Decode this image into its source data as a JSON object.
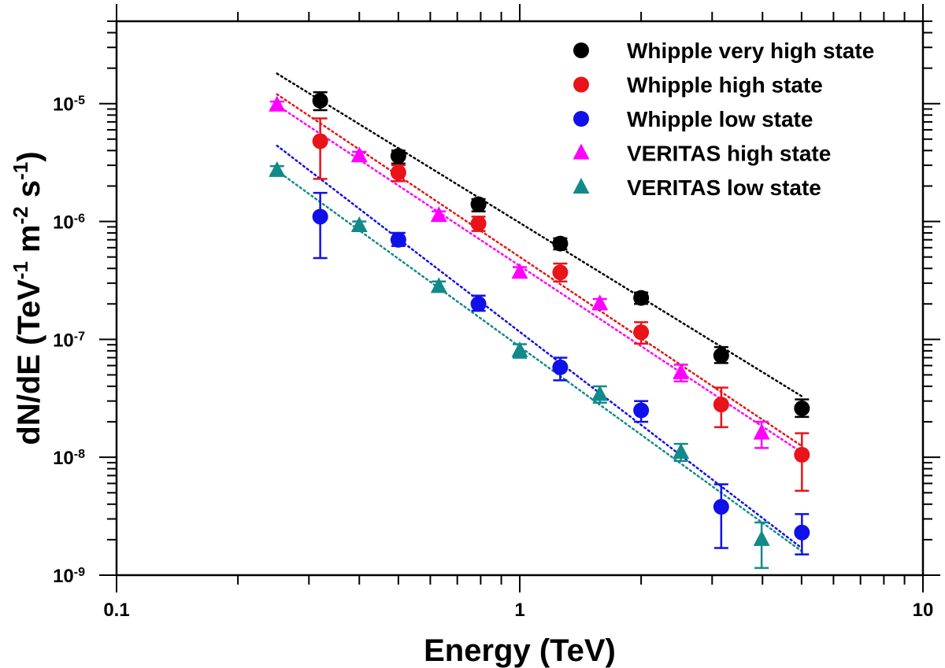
{
  "chart_data": {
    "type": "scatter",
    "title": "",
    "xlabel": "Energy (TeV)",
    "ylabel": {
      "main": "dN/dE (TeV",
      "sup1": "-1",
      "mid": " m",
      "sup2": "-2",
      "mid2": " s",
      "sup3": "-1",
      "end": ")"
    },
    "xscale": "log",
    "yscale": "log",
    "xlim": [
      0.1,
      10
    ],
    "ylim": [
      1e-09,
      5e-05
    ],
    "x_ticks": [
      {
        "value": 0.1,
        "label": "0.1"
      },
      {
        "value": 1,
        "label": "1"
      },
      {
        "value": 10,
        "label": "10"
      }
    ],
    "y_ticks": [
      {
        "value": 1e-09,
        "base": "10",
        "exp": "-9"
      },
      {
        "value": 1e-08,
        "base": "10",
        "exp": "-8"
      },
      {
        "value": 1e-07,
        "base": "10",
        "exp": "-7"
      },
      {
        "value": 1e-06,
        "base": "10",
        "exp": "-6"
      },
      {
        "value": 1e-05,
        "base": "10",
        "exp": "-5"
      }
    ],
    "legend_position": "top-right",
    "series": [
      {
        "name": "Whipple very high state",
        "marker": "circle",
        "color": "#000000",
        "points": [
          {
            "x": 0.32,
            "y": 1.06e-05,
            "ylo": 8.8e-06,
            "yhi": 1.25e-05
          },
          {
            "x": 0.5,
            "y": 3.6e-06,
            "ylo": 3.1e-06,
            "yhi": 4e-06
          },
          {
            "x": 0.79,
            "y": 1.4e-06,
            "ylo": 1.22e-06,
            "yhi": 1.55e-06
          },
          {
            "x": 1.26,
            "y": 6.5e-07,
            "ylo": 5.8e-07,
            "yhi": 7.2e-07
          },
          {
            "x": 2.0,
            "y": 2.25e-07,
            "ylo": 2e-07,
            "yhi": 2.5e-07
          },
          {
            "x": 3.16,
            "y": 7.3e-08,
            "ylo": 6.3e-08,
            "yhi": 8.6e-08
          },
          {
            "x": 5.01,
            "y": 2.6e-08,
            "ylo": 2.2e-08,
            "yhi": 3.1e-08
          }
        ],
        "fit": {
          "x": [
            0.25,
            5.0
          ],
          "y": [
            1.8e-05,
            3.3e-08
          ]
        }
      },
      {
        "name": "Whipple high state",
        "marker": "circle",
        "color": "#e8141a",
        "points": [
          {
            "x": 0.32,
            "y": 4.8e-06,
            "ylo": 2.3e-06,
            "yhi": 7.5e-06
          },
          {
            "x": 0.5,
            "y": 2.6e-06,
            "ylo": 2.2e-06,
            "yhi": 3e-06
          },
          {
            "x": 0.79,
            "y": 9.6e-07,
            "ylo": 8.3e-07,
            "yhi": 1.1e-06
          },
          {
            "x": 1.26,
            "y": 3.7e-07,
            "ylo": 3.1e-07,
            "yhi": 4.4e-07
          },
          {
            "x": 2.0,
            "y": 1.15e-07,
            "ylo": 9.2e-08,
            "yhi": 1.4e-07
          },
          {
            "x": 3.16,
            "y": 2.8e-08,
            "ylo": 1.8e-08,
            "yhi": 3.9e-08
          },
          {
            "x": 5.01,
            "y": 1.05e-08,
            "ylo": 5.2e-09,
            "yhi": 1.6e-08
          }
        ],
        "fit": {
          "x": [
            0.25,
            5.0
          ],
          "y": [
            1.2e-05,
            1.25e-08
          ]
        }
      },
      {
        "name": "Whipple low state",
        "marker": "circle",
        "color": "#1010e8",
        "points": [
          {
            "x": 0.32,
            "y": 1.1e-06,
            "ylo": 4.9e-07,
            "yhi": 1.75e-06
          },
          {
            "x": 0.5,
            "y": 7e-07,
            "ylo": 6.2e-07,
            "yhi": 8e-07
          },
          {
            "x": 0.79,
            "y": 2e-07,
            "ylo": 1.75e-07,
            "yhi": 2.35e-07
          },
          {
            "x": 1.26,
            "y": 5.8e-08,
            "ylo": 4.5e-08,
            "yhi": 7e-08
          },
          {
            "x": 2.0,
            "y": 2.5e-08,
            "ylo": 2e-08,
            "yhi": 3e-08
          },
          {
            "x": 3.16,
            "y": 3.8e-09,
            "ylo": 1.7e-09,
            "yhi": 5.9e-09
          },
          {
            "x": 5.01,
            "y": 2.3e-09,
            "ylo": 1.5e-09,
            "yhi": 3.3e-09
          }
        ],
        "fit": {
          "x": [
            0.25,
            5.0
          ],
          "y": [
            4.4e-06,
            1.7e-09
          ]
        }
      },
      {
        "name": "VERITAS high state",
        "marker": "triangle",
        "color": "#ff00ff",
        "points": [
          {
            "x": 0.25,
            "y": 9.7e-06,
            "ylo": 9e-06,
            "yhi": 1.04e-05
          },
          {
            "x": 0.4,
            "y": 3.6e-06,
            "ylo": 3.3e-06,
            "yhi": 3.9e-06
          },
          {
            "x": 0.63,
            "y": 1.12e-06,
            "ylo": 1.03e-06,
            "yhi": 1.22e-06
          },
          {
            "x": 1.0,
            "y": 3.7e-07,
            "ylo": 3.35e-07,
            "yhi": 4.1e-07
          },
          {
            "x": 1.58,
            "y": 2e-07,
            "ylo": 1.8e-07,
            "yhi": 2.2e-07
          },
          {
            "x": 2.51,
            "y": 5.2e-08,
            "ylo": 4.4e-08,
            "yhi": 6.1e-08
          },
          {
            "x": 3.98,
            "y": 1.6e-08,
            "ylo": 1.2e-08,
            "yhi": 2e-08
          }
        ],
        "fit": {
          "x": [
            0.25,
            5.0
          ],
          "y": [
            9.7e-06,
            1.1e-08
          ]
        }
      },
      {
        "name": "VERITAS low state",
        "marker": "triangle",
        "color": "#138a8a",
        "points": [
          {
            "x": 0.25,
            "y": 2.7e-06,
            "ylo": 2.5e-06,
            "yhi": 2.95e-06
          },
          {
            "x": 0.4,
            "y": 9.2e-07,
            "ylo": 8.4e-07,
            "yhi": 1e-06
          },
          {
            "x": 0.63,
            "y": 2.8e-07,
            "ylo": 2.55e-07,
            "yhi": 3.1e-07
          },
          {
            "x": 1.0,
            "y": 8e-08,
            "ylo": 7e-08,
            "yhi": 9.1e-08
          },
          {
            "x": 1.58,
            "y": 3.4e-08,
            "ylo": 2.9e-08,
            "yhi": 4e-08
          },
          {
            "x": 2.51,
            "y": 1.1e-08,
            "ylo": 9.3e-09,
            "yhi": 1.3e-08
          },
          {
            "x": 3.98,
            "y": 2e-09,
            "ylo": 1.15e-09,
            "yhi": 2.8e-09
          }
        ],
        "fit": {
          "x": [
            0.25,
            5.0
          ],
          "y": [
            2.7e-06,
            1.6e-09
          ]
        }
      }
    ]
  }
}
